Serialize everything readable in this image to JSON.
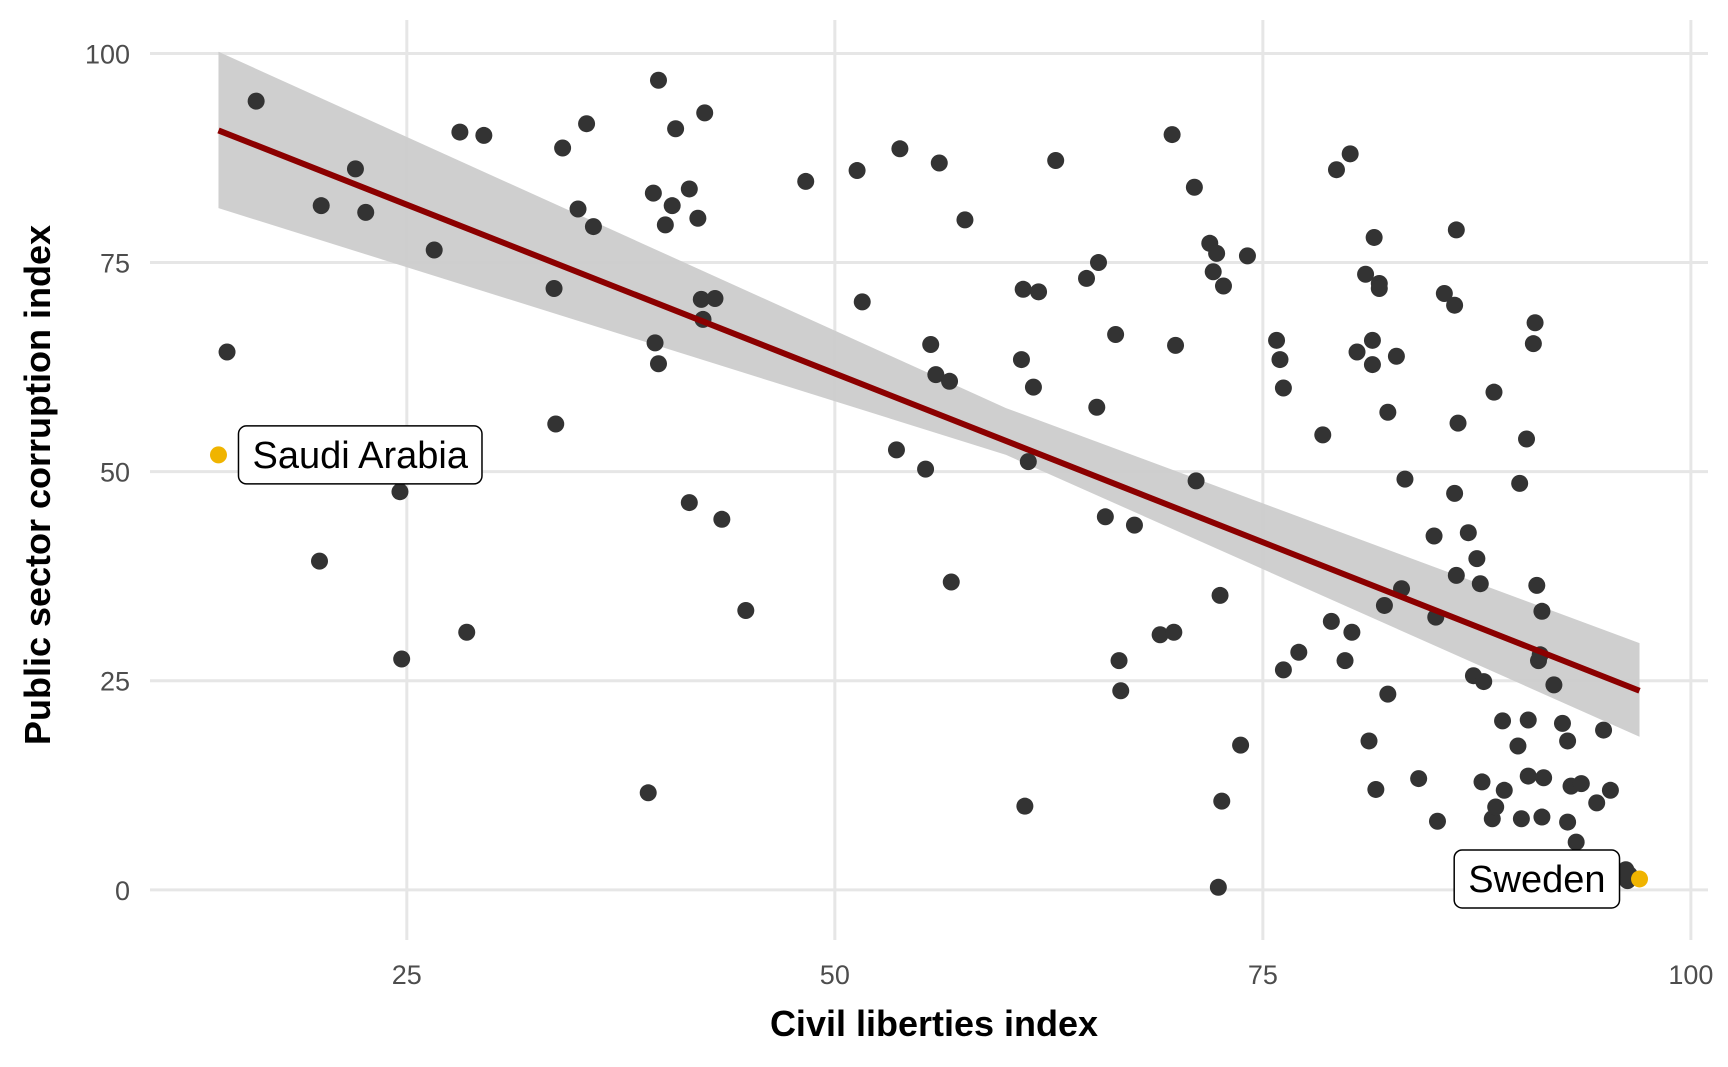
{
  "chart_data": {
    "type": "scatter",
    "title": "",
    "xlabel": "Civil liberties index",
    "ylabel": "Public sector corruption index",
    "xlim": [
      10,
      101
    ],
    "ylim": [
      -6,
      104
    ],
    "x_ticks": [
      25,
      50,
      75,
      100
    ],
    "y_ticks": [
      0,
      25,
      50,
      75,
      100
    ],
    "x_tick_labels": [
      "25",
      "50",
      "75",
      "100"
    ],
    "y_tick_labels": [
      "0",
      "25",
      "50",
      "75",
      "100"
    ],
    "grid": true,
    "legend": "none",
    "colors": {
      "points": "#333333",
      "highlight": "#f0b400",
      "fit_line": "#8b0000",
      "confidence_band": "#cccccc",
      "gridline": "#e6e6e6"
    },
    "fit": {
      "method": "linear",
      "x_range": [
        14,
        97
      ],
      "line": [
        [
          14,
          90.8
        ],
        [
          97,
          23.8
        ]
      ],
      "band_lower": [
        [
          14,
          81.5
        ],
        [
          60,
          52.0
        ],
        [
          97,
          18.3
        ]
      ],
      "band_upper": [
        [
          14,
          100.2
        ],
        [
          60,
          57.6
        ],
        [
          97,
          29.5
        ]
      ]
    },
    "highlighted": [
      {
        "name": "Saudi Arabia",
        "x": 14,
        "y": 52
      },
      {
        "name": "Sweden",
        "x": 97,
        "y": 1.3
      }
    ],
    "points": [
      [
        16.2,
        94.3
      ],
      [
        14.5,
        64.3
      ],
      [
        20.0,
        81.8
      ],
      [
        22.0,
        86.2
      ],
      [
        22.6,
        81.0
      ],
      [
        19.9,
        39.3
      ],
      [
        24.6,
        47.6
      ],
      [
        24.7,
        27.6
      ],
      [
        26.6,
        76.5
      ],
      [
        28.1,
        90.6
      ],
      [
        28.5,
        30.8
      ],
      [
        29.5,
        90.2
      ],
      [
        33.6,
        71.9
      ],
      [
        34.1,
        88.7
      ],
      [
        33.7,
        55.7
      ],
      [
        35.0,
        81.4
      ],
      [
        35.5,
        91.6
      ],
      [
        35.9,
        79.3
      ],
      [
        39.1,
        11.6
      ],
      [
        39.4,
        83.3
      ],
      [
        39.5,
        65.4
      ],
      [
        39.7,
        62.9
      ],
      [
        39.7,
        96.8
      ],
      [
        40.1,
        79.5
      ],
      [
        40.5,
        81.8
      ],
      [
        40.7,
        91.0
      ],
      [
        41.5,
        83.8
      ],
      [
        41.5,
        46.3
      ],
      [
        42.0,
        80.3
      ],
      [
        42.2,
        70.6
      ],
      [
        42.3,
        68.2
      ],
      [
        42.4,
        92.9
      ],
      [
        43.0,
        70.7
      ],
      [
        43.4,
        44.3
      ],
      [
        44.8,
        33.4
      ],
      [
        48.3,
        84.7
      ],
      [
        51.3,
        86.0
      ],
      [
        51.6,
        70.3
      ],
      [
        53.6,
        52.6
      ],
      [
        53.8,
        88.6
      ],
      [
        55.3,
        50.3
      ],
      [
        55.6,
        65.2
      ],
      [
        55.9,
        61.6
      ],
      [
        56.1,
        86.9
      ],
      [
        56.7,
        60.8
      ],
      [
        56.8,
        36.8
      ],
      [
        57.6,
        80.1
      ],
      [
        60.9,
        63.4
      ],
      [
        61.0,
        71.8
      ],
      [
        61.1,
        10.0
      ],
      [
        61.3,
        51.2
      ],
      [
        61.6,
        60.1
      ],
      [
        61.9,
        71.5
      ],
      [
        62.9,
        87.2
      ],
      [
        64.7,
        73.1
      ],
      [
        65.3,
        57.7
      ],
      [
        65.4,
        75.0
      ],
      [
        65.8,
        44.6
      ],
      [
        66.4,
        66.4
      ],
      [
        66.6,
        27.4
      ],
      [
        66.7,
        23.8
      ],
      [
        67.5,
        43.6
      ],
      [
        69.0,
        30.5
      ],
      [
        69.7,
        90.3
      ],
      [
        69.8,
        30.8
      ],
      [
        69.9,
        65.1
      ],
      [
        71.0,
        84.0
      ],
      [
        71.1,
        48.9
      ],
      [
        71.9,
        77.3
      ],
      [
        72.1,
        73.9
      ],
      [
        72.3,
        76.1
      ],
      [
        72.4,
        0.3
      ],
      [
        72.5,
        35.2
      ],
      [
        72.6,
        10.6
      ],
      [
        72.7,
        72.2
      ],
      [
        73.7,
        17.3
      ],
      [
        74.1,
        75.8
      ],
      [
        75.8,
        65.7
      ],
      [
        76.0,
        63.4
      ],
      [
        76.2,
        60.0
      ],
      [
        76.2,
        26.3
      ],
      [
        77.1,
        28.4
      ],
      [
        78.5,
        54.4
      ],
      [
        79.0,
        32.1
      ],
      [
        79.3,
        86.1
      ],
      [
        79.8,
        27.4
      ],
      [
        80.1,
        88.0
      ],
      [
        80.2,
        30.8
      ],
      [
        80.5,
        64.3
      ],
      [
        81.0,
        73.6
      ],
      [
        81.2,
        17.8
      ],
      [
        81.4,
        65.7
      ],
      [
        81.4,
        62.8
      ],
      [
        81.5,
        78.0
      ],
      [
        81.6,
        12.0
      ],
      [
        81.8,
        72.5
      ],
      [
        81.8,
        71.9
      ],
      [
        82.1,
        34.0
      ],
      [
        82.3,
        57.1
      ],
      [
        82.3,
        23.4
      ],
      [
        82.8,
        63.8
      ],
      [
        83.1,
        36.0
      ],
      [
        83.3,
        49.1
      ],
      [
        84.1,
        13.3
      ],
      [
        85.0,
        42.3
      ],
      [
        85.1,
        32.6
      ],
      [
        85.2,
        8.2
      ],
      [
        85.6,
        71.3
      ],
      [
        86.2,
        69.9
      ],
      [
        86.3,
        78.9
      ],
      [
        86.2,
        47.4
      ],
      [
        86.3,
        37.6
      ],
      [
        86.4,
        55.8
      ],
      [
        87.0,
        42.7
      ],
      [
        87.3,
        25.6
      ],
      [
        87.5,
        39.6
      ],
      [
        87.7,
        36.6
      ],
      [
        87.8,
        12.9
      ],
      [
        87.9,
        24.9
      ],
      [
        88.4,
        8.5
      ],
      [
        88.5,
        59.5
      ],
      [
        88.6,
        9.9
      ],
      [
        89.0,
        20.2
      ],
      [
        89.1,
        11.9
      ],
      [
        89.9,
        17.2
      ],
      [
        90.0,
        48.6
      ],
      [
        90.1,
        8.5
      ],
      [
        90.4,
        53.9
      ],
      [
        90.5,
        20.3
      ],
      [
        90.5,
        13.6
      ],
      [
        90.8,
        65.3
      ],
      [
        90.9,
        67.8
      ],
      [
        91.0,
        36.4
      ],
      [
        91.1,
        27.4
      ],
      [
        91.2,
        28.1
      ],
      [
        91.3,
        33.3
      ],
      [
        91.3,
        8.7
      ],
      [
        91.4,
        13.4
      ],
      [
        92.0,
        24.5
      ],
      [
        92.5,
        19.9
      ],
      [
        92.8,
        17.8
      ],
      [
        92.8,
        8.1
      ],
      [
        93.0,
        12.4
      ],
      [
        93.3,
        5.7
      ],
      [
        93.6,
        12.7
      ],
      [
        94.5,
        10.4
      ],
      [
        94.9,
        19.1
      ],
      [
        95.3,
        11.9
      ],
      [
        95.9,
        2.0
      ],
      [
        96.1,
        1.5
      ],
      [
        96.2,
        2.4
      ],
      [
        96.3,
        1.1
      ],
      [
        96.4,
        1.8
      ]
    ]
  }
}
